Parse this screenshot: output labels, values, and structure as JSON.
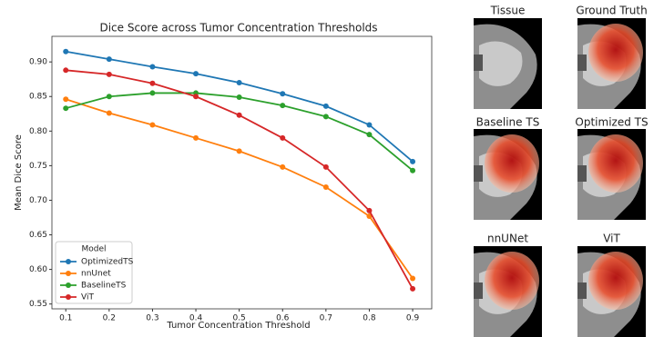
{
  "chart_data": {
    "type": "line",
    "title": "Dice Score across Tumor Concentration Thresholds",
    "x_label": "Tumor Concentration Threshold",
    "y_label": "Mean Dice Score",
    "x": [
      0.1,
      0.2,
      0.3,
      0.4,
      0.5,
      0.6,
      0.7,
      0.8,
      0.9
    ],
    "xlim": [
      0.068,
      0.944
    ],
    "xticks": [
      0.1,
      0.2,
      0.3,
      0.4,
      0.5,
      0.6,
      0.7,
      0.8,
      0.9
    ],
    "ylim": [
      0.543,
      0.937
    ],
    "yticks": [
      0.55,
      {
        "value": 0.6,
        "label": "0.60"
      },
      0.65,
      {
        "value": 0.7,
        "label": "0.70"
      },
      0.75,
      {
        "value": 0.8,
        "label": "0.80"
      },
      0.85,
      {
        "value": 0.9,
        "label": "0.90"
      }
    ],
    "legend_title": "Model",
    "legend": "lower left",
    "grid": false,
    "series": [
      {
        "name": "OptimizedTS",
        "color": "#1f77b4",
        "values": [
          0.915,
          0.904,
          0.893,
          0.883,
          0.87,
          0.854,
          0.836,
          0.809,
          0.756
        ]
      },
      {
        "name": "nnUnet",
        "color": "#ff7f0e",
        "values": [
          0.846,
          0.826,
          0.809,
          0.79,
          0.771,
          0.748,
          0.719,
          0.677,
          0.587
        ]
      },
      {
        "name": "BaselineTS",
        "color": "#2ca02c",
        "values": [
          0.833,
          0.85,
          0.855,
          0.855,
          0.849,
          0.837,
          0.821,
          0.795,
          0.743
        ]
      },
      {
        "name": "ViT",
        "color": "#d62728",
        "values": [
          0.888,
          0.882,
          0.869,
          0.85,
          0.823,
          0.79,
          0.748,
          0.685,
          0.572
        ]
      }
    ]
  },
  "panels": [
    {
      "title": "Tissue"
    },
    {
      "title": "Ground Truth"
    },
    {
      "title": "Baseline TS"
    },
    {
      "title": "Optimized TS"
    },
    {
      "title": "nnUNet"
    },
    {
      "title": "ViT"
    }
  ]
}
